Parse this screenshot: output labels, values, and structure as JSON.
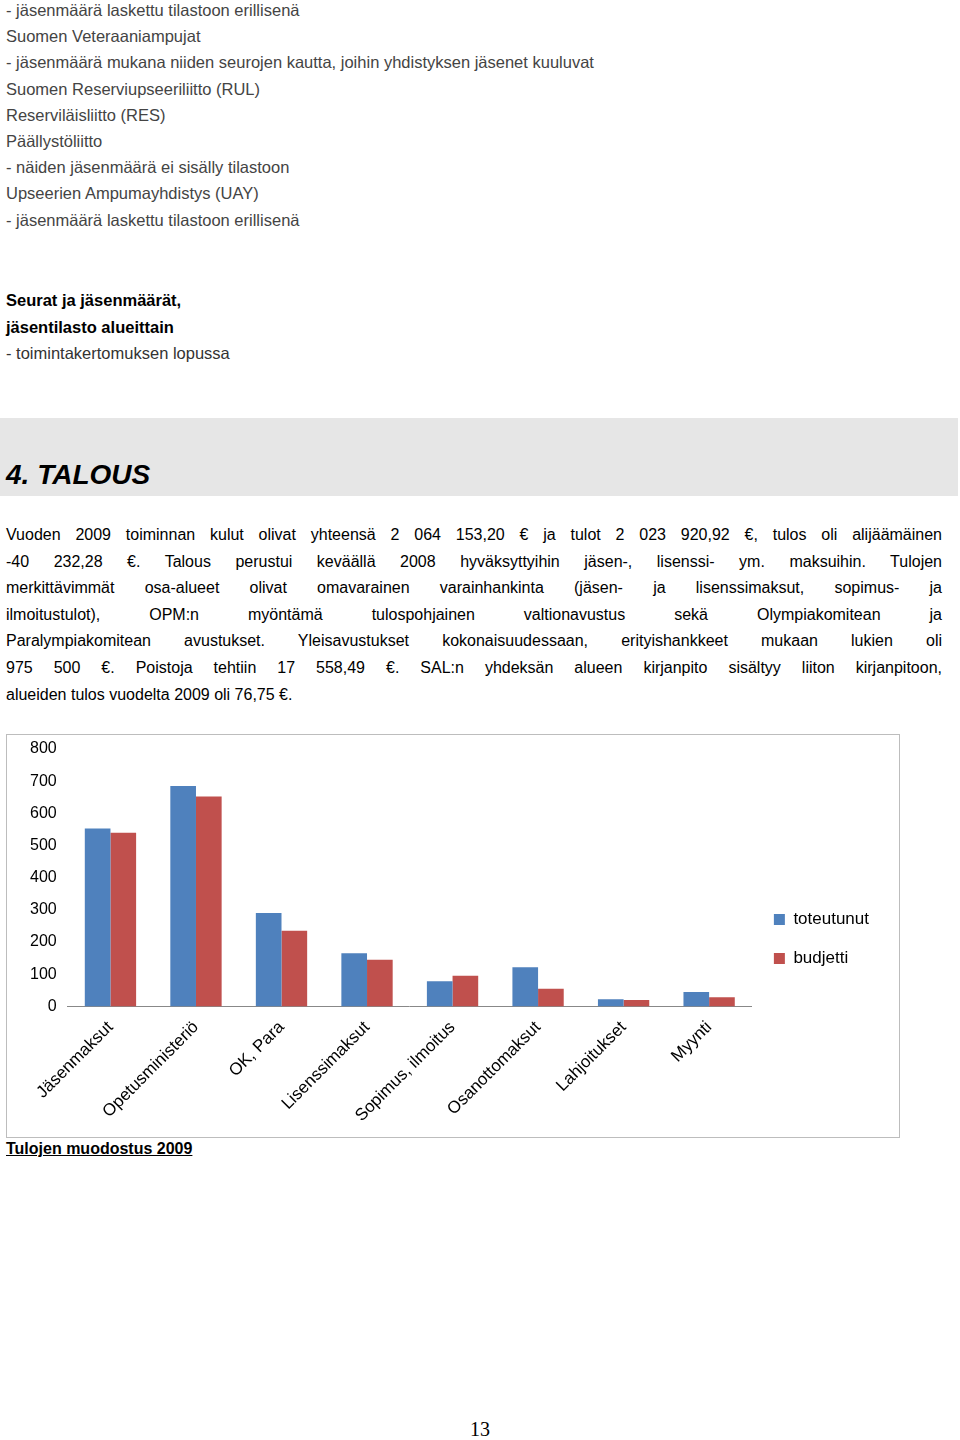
{
  "document": {
    "intro_lines": [
      "- jäsenmäärä laskettu tilastoon erillisenä",
      "Suomen Veteraaniampujat",
      "- jäsenmäärä mukana niiden seurojen kautta, joihin yhdistyksen jäsenet kuuluvat",
      "Suomen Reserviupseeriliitto (RUL)",
      "Reserviläisliitto (RES)",
      "Päällystöliitto",
      "- näiden jäsenmäärä ei sisälly tilastoon",
      "Upseerien Ampumayhdistys (UAY)",
      "- jäsenmäärä laskettu tilastoon erillisenä"
    ],
    "members_heading": [
      "Seurat ja jäsenmäärät,",
      "jäsentilasto alueittain"
    ],
    "members_note": "- toimintakertomuksen lopussa",
    "section_heading": "4. TALOUS",
    "paragraph_lines": [
      "Vuoden 2009 toiminnan kulut olivat yhteensä 2 064 153,20 € ja tulot 2 023 920,92 €, tulos oli alijäämäinen",
      "-40 232,28 €. Talous perustui keväällä 2008 hyväksyttyihin jäsen-, lisenssi- ym. maksuihin. Tulojen",
      "merkittävimmät osa-alueet olivat omavarainen varainhankinta (jäsen- ja lisenssimaksut, sopimus- ja",
      "ilmoitustulot), OPM:n myöntämä tulospohjainen valtionavustus sekä Olympiakomitean ja",
      "Paralympiakomitean avustukset. Yleisavustukset kokonaisuudessaan, erityishankkeet mukaan lukien oli",
      "975 500 €. Poistoja tehtiin 17 558,49 €. SAL:n yhdeksän alueen kirjanpito sisältyy liiton kirjanpitoon,",
      "alueiden tulos vuodelta 2009 oli 76,75 €."
    ],
    "caption": "Tulojen muodostus 2009",
    "page_number": "13"
  },
  "chart_data": {
    "type": "bar",
    "categories": [
      "Jäsenmaksut",
      "Opetusministeriö",
      "OK, Para",
      "Lisenssimaksut",
      "Sopimus, ilmoitus",
      "Osanottomaksut",
      "Lahjoitukset",
      "Myynti"
    ],
    "series": [
      {
        "name": "toteutunut",
        "color": "#4f81bd",
        "values": [
          553,
          685,
          290,
          165,
          78,
          122,
          22,
          45
        ]
      },
      {
        "name": "budjetti",
        "color": "#c0504d",
        "values": [
          540,
          652,
          235,
          145,
          95,
          55,
          20,
          28
        ]
      }
    ],
    "ylim": [
      0,
      800
    ],
    "yticks": [
      0,
      100,
      200,
      300,
      400,
      500,
      600,
      700,
      800
    ],
    "grid": false,
    "legend": "right"
  }
}
